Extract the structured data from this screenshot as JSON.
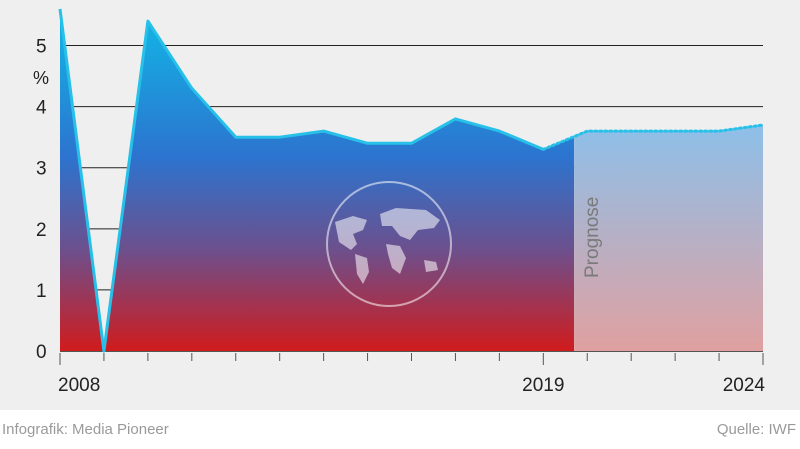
{
  "chart_data": {
    "type": "area",
    "title": "",
    "xlabel": "",
    "ylabel": "%",
    "ylim": [
      0,
      5.5
    ],
    "xlim": [
      2008,
      2024
    ],
    "yticks": [
      0,
      1,
      2,
      3,
      4,
      5
    ],
    "xtick_labels": [
      "2008",
      "2019",
      "2024"
    ],
    "grid": true,
    "series": [
      {
        "x": [
          2008,
          2009,
          2010,
          2011,
          2012,
          2013,
          2014,
          2015,
          2016,
          2017,
          2018,
          2019
        ],
        "values": [
          5.6,
          -0.1,
          5.4,
          4.3,
          3.5,
          3.5,
          3.6,
          3.4,
          3.4,
          3.8,
          3.6,
          3.3
        ],
        "style": "solid"
      },
      {
        "x": [
          2019,
          2020,
          2021,
          2022,
          2023,
          2024
        ],
        "values": [
          3.3,
          3.6,
          3.6,
          3.6,
          3.6,
          3.7
        ],
        "style": "dotted"
      }
    ],
    "annotation": "Prognose",
    "colors": {
      "top": "#1aaee0",
      "mid": "#2f6fcf",
      "bottom": "#d01c1c",
      "line": "#27c0e8"
    }
  },
  "footer": {
    "credit": "Infografik: Media Pioneer",
    "source": "Quelle: IWF"
  }
}
